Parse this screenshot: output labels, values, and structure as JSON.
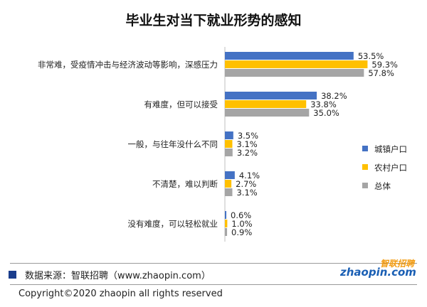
{
  "chart_data": {
    "type": "bar",
    "orientation": "horizontal",
    "title": "毕业生对当下就业形势的感知",
    "categories": [
      "非常难，受疫情冲击与经济波动等影响，深感压力",
      "有难度，但可以接受",
      "一般，与往年没什么不同",
      "不清楚，难以判断",
      "没有难度，可以轻松就业"
    ],
    "series": [
      {
        "name": "城镇户口",
        "color": "#4472c4",
        "values": [
          53.5,
          38.2,
          3.5,
          4.1,
          0.6
        ]
      },
      {
        "name": "农村户口",
        "color": "#ffc000",
        "values": [
          59.3,
          33.8,
          3.1,
          2.7,
          1.0
        ]
      },
      {
        "name": "总体",
        "color": "#a5a5a5",
        "values": [
          57.8,
          35.0,
          3.2,
          3.1,
          0.9
        ]
      }
    ],
    "value_suffix": "%",
    "legend_position": "right",
    "xlim": [
      0,
      100
    ],
    "grid": false
  },
  "footer": {
    "source": "数据来源：智联招聘（www.zhaopin.com）",
    "copyright": "Copyright©2020  zhaopin all rights reserved"
  },
  "logo": {
    "top_text": "智联招聘",
    "main_text": "zhaopin.com"
  }
}
